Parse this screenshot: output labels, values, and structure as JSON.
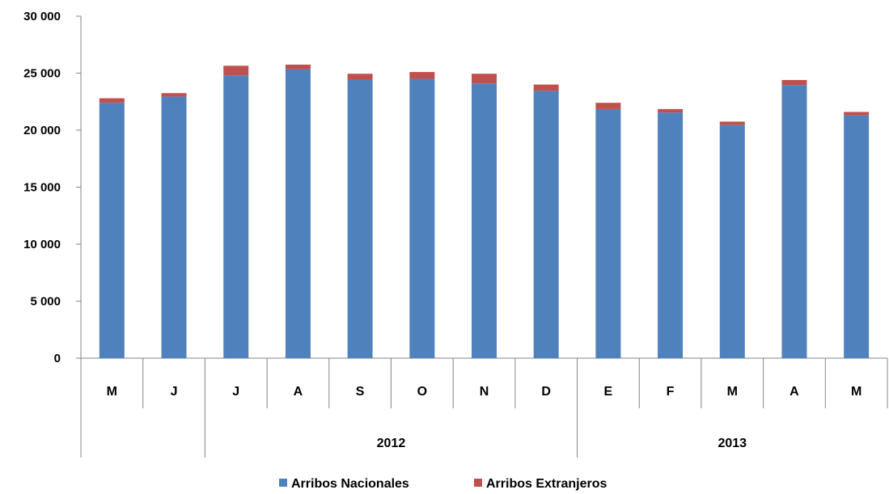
{
  "chart_data": {
    "type": "bar",
    "stacked": true,
    "categories": [
      "M",
      "J",
      "J",
      "A",
      "S",
      "O",
      "N",
      "D",
      "E",
      "F",
      "M",
      "A",
      "M"
    ],
    "year_groups": [
      {
        "label": "",
        "start": 0,
        "end": 1
      },
      {
        "label": "2012",
        "start": 2,
        "end": 7
      },
      {
        "label": "2013",
        "start": 8,
        "end": 12
      }
    ],
    "series": [
      {
        "name": "Arribos Nacionales",
        "color": "#4F81BD",
        "values": [
          22400,
          22950,
          24800,
          25350,
          24400,
          24500,
          24100,
          23450,
          21850,
          21550,
          20450,
          23950,
          21300
        ]
      },
      {
        "name": "Arribos Extranjeros",
        "color": "#C0504D",
        "values": [
          400,
          300,
          850,
          400,
          550,
          600,
          850,
          550,
          550,
          300,
          300,
          450,
          300
        ]
      }
    ],
    "yticks": [
      "0",
      "5 000",
      "10 000",
      "15 000",
      "20 000",
      "25 000",
      "30 000"
    ],
    "ylim": [
      0,
      30000
    ],
    "xlabel": "",
    "ylabel": "",
    "title": "",
    "grid": false,
    "legend_position": "bottom"
  }
}
